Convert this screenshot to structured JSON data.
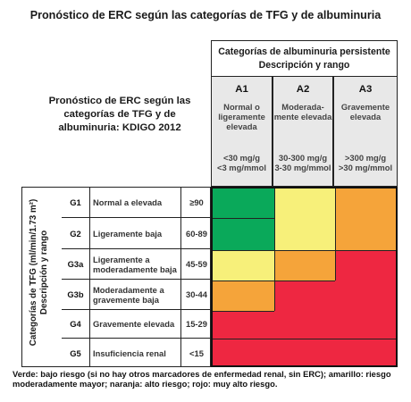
{
  "main_title": "Pronóstico de ERC según las categorías de TFG y de albuminuria",
  "subtitle": "Pronóstico de ERC según las categorías de TFG y de albuminuria: KDIGO 2012",
  "albuminuria_header": {
    "line1": "Categorías de albuminuria persistente",
    "line2": "Descripción y rango"
  },
  "albuminuria_columns": [
    {
      "code": "A1",
      "desc1": "Normal o",
      "desc2": "ligeramente",
      "desc3": "elevada",
      "range1": "<30 mg/g",
      "range2": "<3 mg/mmol"
    },
    {
      "code": "A2",
      "desc1": "Moderada-",
      "desc2": "mente elevada",
      "desc3": "",
      "range1": "30-300 mg/g",
      "range2": "3-30 mg/mmol"
    },
    {
      "code": "A3",
      "desc1": "Gravemente",
      "desc2": "elevada",
      "desc3": "",
      "range1": ">300 mg/g",
      "range2": ">30 mg/mmol"
    }
  ],
  "gfr_axis_label": {
    "line1": "Categorías de TFG (ml/min/1.73 m²)",
    "line2": "Descripción y rango"
  },
  "gfr_rows": [
    {
      "code": "G1",
      "desc": "Normal a elevada",
      "range": "≥90"
    },
    {
      "code": "G2",
      "desc": "Ligeramente baja",
      "range": "60-89"
    },
    {
      "code": "G3a",
      "desc": "Ligeramente a moderadamente baja",
      "range": "45-59"
    },
    {
      "code": "G3b",
      "desc": "Moderadamente a gravemente baja",
      "range": "30-44"
    },
    {
      "code": "G4",
      "desc": "Gravemente elevada",
      "range": "15-29"
    },
    {
      "code": "G5",
      "desc": "Insuficiencia renal",
      "range": "<15"
    }
  ],
  "risk_colors": {
    "green": "#0aa95a",
    "yellow": "#f7f07a",
    "orange": "#f5a43a",
    "red": "#ee2741"
  },
  "risk_grid": [
    [
      "green",
      "yellow",
      "orange"
    ],
    [
      "green",
      "yellow",
      "orange"
    ],
    [
      "yellow",
      "orange",
      "red"
    ],
    [
      "orange",
      "red",
      "red"
    ],
    [
      "red",
      "red",
      "red"
    ],
    [
      "red",
      "red",
      "red"
    ]
  ],
  "legend": "Verde: bajo riesgo (si no hay otros marcadores de enfermedad renal, sin ERC); amarillo: riesgo moderadamente mayor; naranja: alto riesgo; rojo: muy alto riesgo."
}
